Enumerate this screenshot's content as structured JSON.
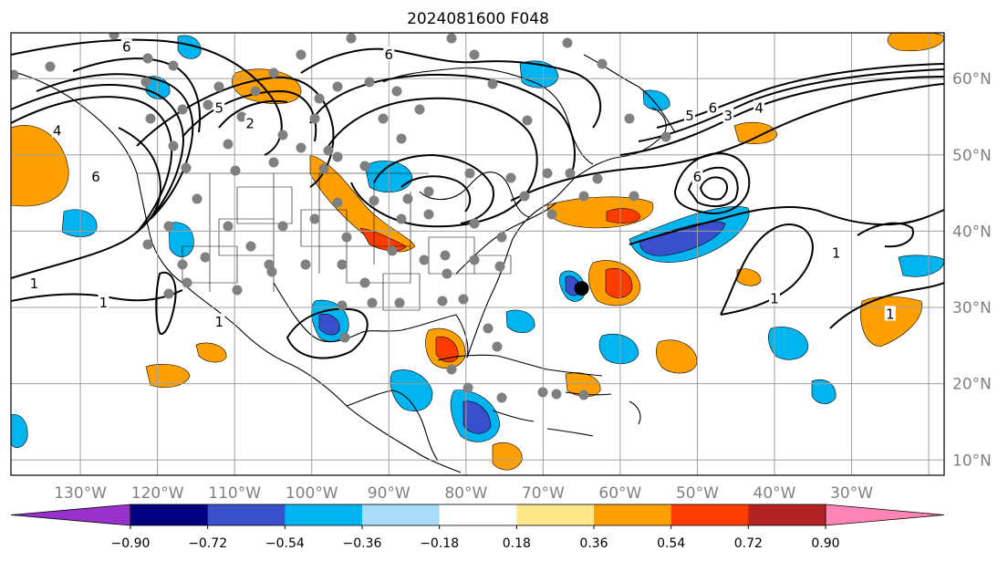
{
  "title": "2024081600 F048",
  "colors": {
    "grid": "#a0a0a0",
    "coast": "#000000",
    "contour": "#000000",
    "station": "#808080",
    "storm": "#000000",
    "tick_label": "#808080"
  },
  "map": {
    "lon_range": [
      -139,
      -18
    ],
    "lat_range": [
      8,
      66
    ],
    "lon_ticks": [
      "130°W",
      "120°W",
      "110°W",
      "100°W",
      "90°W",
      "80°W",
      "70°W",
      "60°W",
      "50°W",
      "40°W",
      "30°W"
    ],
    "lat_ticks": [
      "10°N",
      "20°N",
      "30°N",
      "40°N",
      "50°N",
      "60°N"
    ],
    "contour_labels": [
      {
        "text": "1",
        "lon": -136,
        "lat": 33
      },
      {
        "text": "1",
        "lon": -127,
        "lat": 30.5
      },
      {
        "text": "1",
        "lon": -112,
        "lat": 28
      },
      {
        "text": "1",
        "lon": -32,
        "lat": 37
      },
      {
        "text": "1",
        "lon": -40,
        "lat": 31
      },
      {
        "text": "1",
        "lon": -25,
        "lat": 29
      },
      {
        "text": "6",
        "lon": -124,
        "lat": 64
      },
      {
        "text": "6",
        "lon": -90,
        "lat": 63
      },
      {
        "text": "5",
        "lon": -112,
        "lat": 56
      },
      {
        "text": "2",
        "lon": -108,
        "lat": 54
      },
      {
        "text": "6",
        "lon": -128,
        "lat": 47
      },
      {
        "text": "4",
        "lon": -133,
        "lat": 53
      },
      {
        "text": "6",
        "lon": -48,
        "lat": 56
      },
      {
        "text": "5",
        "lon": -51,
        "lat": 55
      },
      {
        "text": "3",
        "lon": -46,
        "lat": 55
      },
      {
        "text": "4",
        "lon": -42,
        "lat": 56
      },
      {
        "text": "6",
        "lon": -50,
        "lat": 47
      }
    ],
    "storm": {
      "lon": -65,
      "lat": 32.5
    }
  },
  "colorbar": {
    "tick_labels": [
      "−0.90",
      "−0.72",
      "−0.54",
      "−0.36",
      "−0.18",
      "0.18",
      "0.36",
      "0.54",
      "0.72",
      "0.90"
    ],
    "bin_colors": [
      "#000080",
      "#3a4fcc",
      "#00b4f0",
      "#a8dcfa",
      "#ffffff",
      "#ffe88a",
      "#ffa000",
      "#ff3c00",
      "#b22222"
    ],
    "under_color": "#9932cc",
    "over_color": "#ff85b4"
  }
}
